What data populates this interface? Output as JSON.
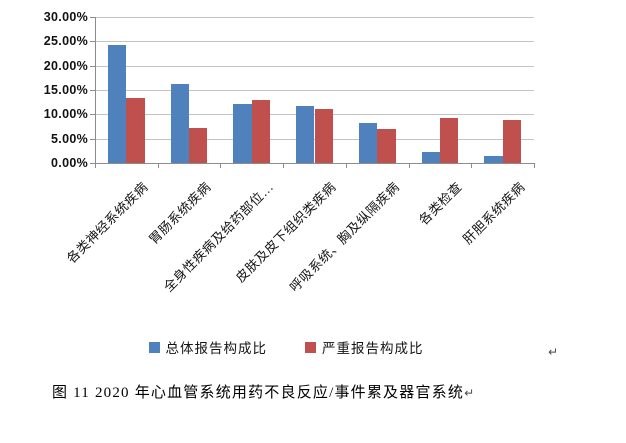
{
  "chart_data": {
    "type": "bar",
    "title": "",
    "xlabel": "",
    "ylabel": "",
    "categories": [
      "各类神经系统疾病",
      "胃肠系统疾病",
      "全身性疾病及给药部位…",
      "皮肤及皮下组织类疾病",
      "呼吸系统、胸及纵隔疾病",
      "各类检查",
      "肝胆系统疾病"
    ],
    "series": [
      {
        "name": "总体报告构成比",
        "color": "#4F81BD",
        "values": [
          24.3,
          16.3,
          12.1,
          11.8,
          8.2,
          2.2,
          1.5
        ]
      },
      {
        "name": "严重报告构成比",
        "color": "#C0504D",
        "values": [
          13.4,
          7.2,
          13.0,
          11.1,
          7.0,
          9.3,
          8.8
        ]
      }
    ],
    "ylim": [
      0,
      30
    ],
    "ytick_step": 5,
    "ytick_labels": [
      "30.00%",
      "25.00%",
      "20.00%",
      "15.00%",
      "10.00%",
      "5.00%",
      "0.00%"
    ],
    "grid": true,
    "legend_position": "bottom"
  },
  "caption": {
    "text": "图 11  2020 年心血管系统用药不良反应/事件累及器官系统"
  },
  "marks": {
    "return_symbol": "↵"
  }
}
